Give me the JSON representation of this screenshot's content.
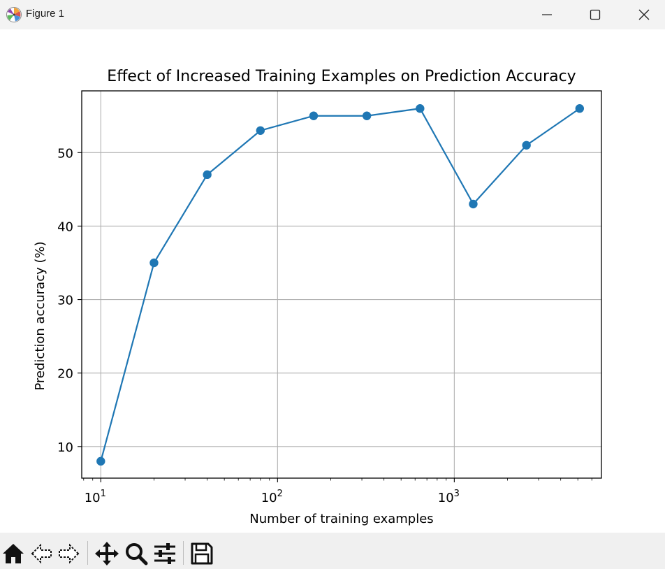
{
  "window": {
    "title": "Figure 1",
    "icons": {
      "app": "matplotlib-logo-icon",
      "minimize": "minimize-icon",
      "maximize": "maximize-icon",
      "close": "close-icon"
    }
  },
  "toolbar": {
    "buttons": [
      {
        "name": "home-button",
        "icon": "home-icon"
      },
      {
        "name": "back-button",
        "icon": "back-arrow-icon"
      },
      {
        "name": "forward-button",
        "icon": "forward-arrow-icon"
      },
      {
        "name": "pan-button",
        "icon": "move-icon"
      },
      {
        "name": "zoom-button",
        "icon": "magnifier-icon"
      },
      {
        "name": "configure-subplots-button",
        "icon": "sliders-icon"
      },
      {
        "name": "save-button",
        "icon": "floppy-disk-icon"
      }
    ]
  },
  "chart_data": {
    "type": "line",
    "title": "Effect of Increased Training Examples on Prediction Accuracy",
    "xlabel": "Number of training examples",
    "ylabel": "Prediction accuracy (%)",
    "xscale": "log",
    "xlim": [
      7.8,
      6800
    ],
    "ylim": [
      5.7,
      58.4
    ],
    "x_ticks": [
      {
        "value": 10,
        "base": "10",
        "exp": "1"
      },
      {
        "value": 100,
        "base": "10",
        "exp": "2"
      },
      {
        "value": 1000,
        "base": "10",
        "exp": "3"
      }
    ],
    "y_ticks": [
      10,
      20,
      30,
      40,
      50
    ],
    "grid": true,
    "color": "#1f77b4",
    "marker": "circle",
    "series": [
      {
        "x": [
          10,
          20,
          40,
          80,
          160,
          320,
          640,
          1280,
          2560,
          5120
        ],
        "y": [
          8,
          35,
          47,
          53,
          55,
          55,
          56,
          43,
          51,
          56
        ]
      }
    ]
  }
}
